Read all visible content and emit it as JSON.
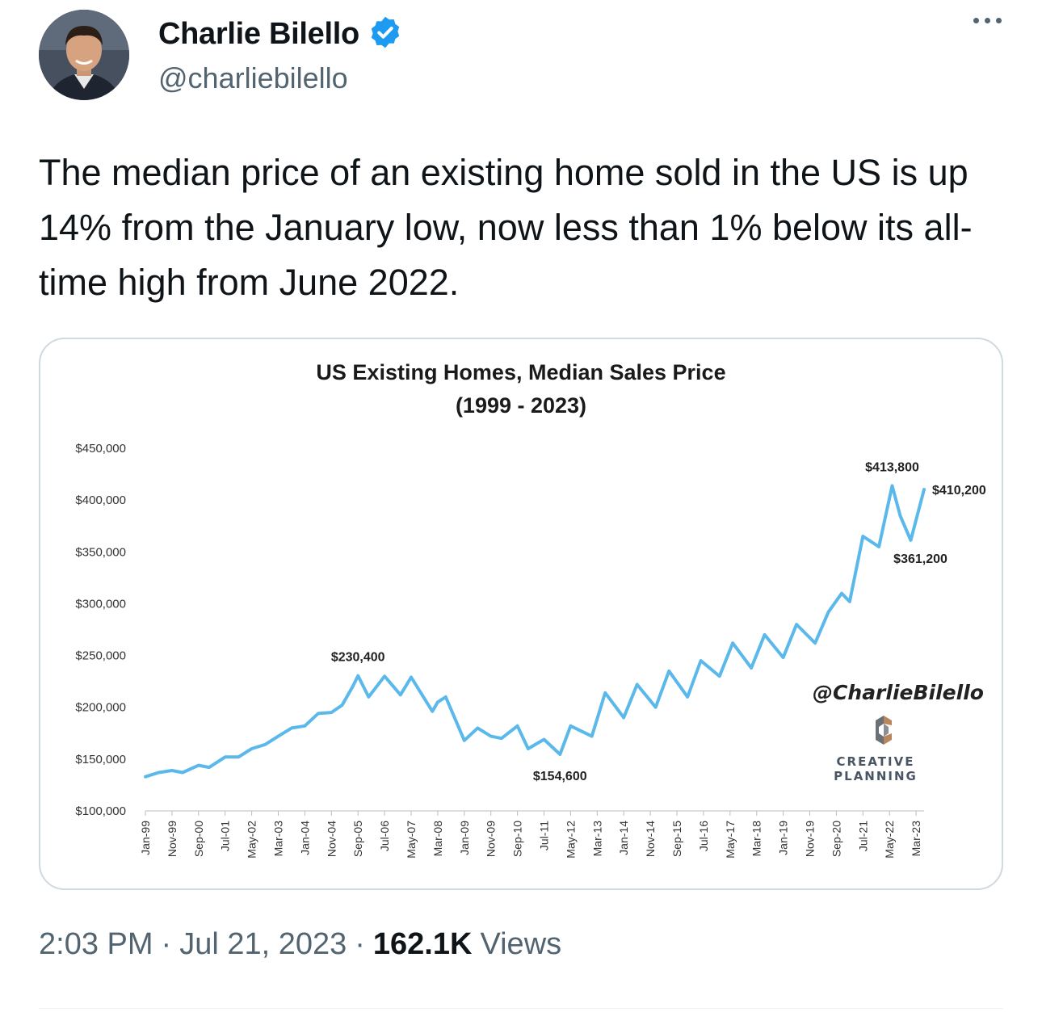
{
  "author": {
    "name": "Charlie Bilello",
    "handle": "@charliebilello",
    "verified": true,
    "verified_color": "#1d9bf0"
  },
  "tweet": {
    "text": "The median price of an existing home sold in the US is up 14% from the January low, now less than 1% below its all-time high from June 2022.",
    "time": "2:03 PM",
    "date": "Jul 21, 2023",
    "separator": "·",
    "views_count": "162.1K",
    "views_label": "Views"
  },
  "card_icons": {
    "more": "more-horizontal-icon",
    "verified": "verified-badge-icon"
  },
  "chart_data": {
    "type": "line",
    "title": "US Existing Homes, Median Sales Price",
    "subtitle": "(1999 - 2023)",
    "line_color": "#5ab9ea",
    "ylim": [
      100000,
      450000
    ],
    "y_ticks": [
      "$100,000",
      "$150,000",
      "$200,000",
      "$250,000",
      "$300,000",
      "$350,000",
      "$400,000",
      "$450,000"
    ],
    "x_ticks": [
      "Jan-99",
      "Nov-99",
      "Sep-00",
      "Jul-01",
      "May-02",
      "Mar-03",
      "Jan-04",
      "Nov-04",
      "Sep-05",
      "Jul-06",
      "May-07",
      "Mar-08",
      "Jan-09",
      "Nov-09",
      "Sep-10",
      "Jul-11",
      "May-12",
      "Mar-13",
      "Jan-14",
      "Nov-14",
      "Sep-15",
      "Jul-16",
      "May-17",
      "Mar-18",
      "Jan-19",
      "Nov-19",
      "Sep-20",
      "Jul-21",
      "May-22",
      "Mar-23"
    ],
    "series": [
      {
        "x": [
          "Jan-99",
          "Jun-99",
          "Nov-99",
          "Mar-00",
          "Sep-00",
          "Jan-01",
          "Jul-01",
          "Dec-01",
          "May-02",
          "Oct-02",
          "Mar-03",
          "Aug-03",
          "Jan-04",
          "Jun-04",
          "Nov-04",
          "Mar-05",
          "Jul-05",
          "Sep-05",
          "Jan-06",
          "Jul-06",
          "Jan-07",
          "May-07",
          "Jan-08",
          "Mar-08",
          "Jun-08",
          "Jan-09",
          "Jun-09",
          "Nov-09",
          "Mar-10",
          "Sep-10",
          "Jan-11",
          "Jul-11",
          "Jan-12",
          "May-12",
          "Jan-13",
          "Jun-13",
          "Jan-14",
          "Jun-14",
          "Jan-15",
          "Jun-15",
          "Jan-16",
          "Jun-16",
          "Jan-17",
          "Jun-17",
          "Jan-18",
          "Jun-18",
          "Jan-19",
          "Jun-19",
          "Jan-20",
          "Jun-20",
          "Nov-20",
          "Feb-21",
          "Jul-21",
          "Jan-22",
          "Jun-22",
          "Sep-22",
          "Jan-23",
          "Jun-23"
        ],
        "y": [
          133000,
          137000,
          139000,
          137000,
          144000,
          142000,
          152000,
          152000,
          160000,
          164000,
          172000,
          180000,
          182000,
          194000,
          195000,
          202000,
          220000,
          230400,
          210000,
          230000,
          212000,
          229000,
          196000,
          205000,
          210000,
          168000,
          180000,
          172000,
          170000,
          182000,
          160000,
          169000,
          154600,
          182000,
          172000,
          214000,
          190000,
          222000,
          200000,
          235000,
          210000,
          245000,
          230000,
          262000,
          238000,
          270000,
          248000,
          280000,
          262000,
          292000,
          310000,
          302000,
          365000,
          355000,
          413800,
          385000,
          361200,
          410200
        ]
      }
    ],
    "annotations": [
      {
        "label": "$230,400",
        "x": "Sep-05",
        "value": 230400
      },
      {
        "label": "$154,600",
        "x": "Jan-12",
        "value": 154600
      },
      {
        "label": "$413,800",
        "x": "Jun-22",
        "value": 413800
      },
      {
        "label": "$361,200",
        "x": "Jan-23",
        "value": 361200
      },
      {
        "label": "$410,200",
        "x": "Jun-23",
        "value": 410200
      }
    ],
    "watermark": "@CharlieBilello",
    "logo_text": [
      "CREATIVE",
      "PLANNING"
    ]
  }
}
